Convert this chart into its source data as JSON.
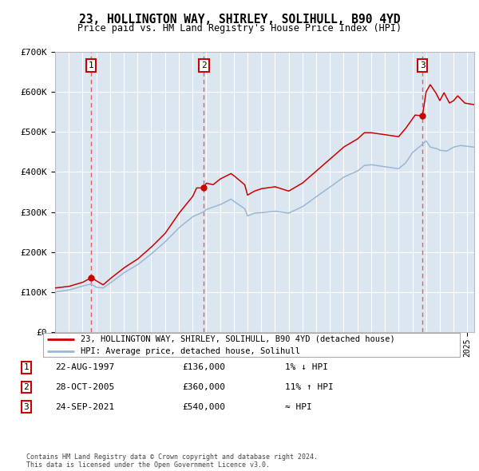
{
  "title": "23, HOLLINGTON WAY, SHIRLEY, SOLIHULL, B90 4YD",
  "subtitle": "Price paid vs. HM Land Registry's House Price Index (HPI)",
  "ylim": [
    0,
    700000
  ],
  "yticks": [
    0,
    100000,
    200000,
    300000,
    400000,
    500000,
    600000,
    700000
  ],
  "ytick_labels": [
    "£0",
    "£100K",
    "£200K",
    "£300K",
    "£400K",
    "£500K",
    "£600K",
    "£700K"
  ],
  "background_color": "#ffffff",
  "plot_bg_color": "#dce6f1",
  "grid_color": "#ffffff",
  "red_line_color": "#cc0000",
  "blue_line_color": "#9ab7d3",
  "vline_color": "#e06060",
  "sale_year_nums": [
    1997.63,
    2005.83,
    2021.73
  ],
  "sale_prices": [
    136000,
    360000,
    540000
  ],
  "sale_labels": [
    "1",
    "2",
    "3"
  ],
  "legend_red": "23, HOLLINGTON WAY, SHIRLEY, SOLIHULL, B90 4YD (detached house)",
  "legend_blue": "HPI: Average price, detached house, Solihull",
  "table_data": [
    [
      "1",
      "22-AUG-1997",
      "£136,000",
      "1% ↓ HPI"
    ],
    [
      "2",
      "28-OCT-2005",
      "£360,000",
      "11% ↑ HPI"
    ],
    [
      "3",
      "24-SEP-2021",
      "£540,000",
      "≈ HPI"
    ]
  ],
  "footnote": "Contains HM Land Registry data © Crown copyright and database right 2024.\nThis data is licensed under the Open Government Licence v3.0.",
  "xlim_start": 1995.0,
  "xlim_end": 2025.5,
  "hpi_key_x": [
    1995,
    1996,
    1997,
    1997.6,
    1998,
    1998.5,
    1999,
    2000,
    2001,
    2002,
    2003,
    2004,
    2005,
    2005.8,
    2006,
    2007,
    2007.8,
    2008,
    2008.8,
    2009,
    2009.5,
    2010,
    2011,
    2012,
    2013,
    2014,
    2015,
    2016,
    2017,
    2017.5,
    2018,
    2019,
    2020,
    2020.5,
    2021,
    2021.5,
    2021.7,
    2022.0,
    2022.3,
    2022.8,
    2023,
    2023.5,
    2024,
    2024.5,
    2025.5
  ],
  "hpi_key_y": [
    100000,
    105000,
    115000,
    120000,
    112000,
    110000,
    122000,
    148000,
    168000,
    195000,
    225000,
    260000,
    288000,
    300000,
    306000,
    318000,
    332000,
    327000,
    308000,
    290000,
    297000,
    298000,
    302000,
    297000,
    313000,
    338000,
    362000,
    387000,
    402000,
    416000,
    418000,
    413000,
    408000,
    422000,
    448000,
    462000,
    468000,
    478000,
    462000,
    458000,
    454000,
    452000,
    462000,
    466000,
    462000
  ],
  "red_key_x": [
    1995,
    1996,
    1997,
    1997.63,
    1998,
    1998.5,
    1999,
    2000,
    2001,
    2002,
    2003,
    2004,
    2005,
    2005.3,
    2005.83,
    2006.0,
    2006.5,
    2007,
    2007.8,
    2008,
    2008.8,
    2009,
    2009.5,
    2010,
    2011,
    2012,
    2013,
    2014,
    2015,
    2016,
    2017,
    2017.5,
    2018,
    2019,
    2020,
    2020.5,
    2021,
    2021.2,
    2021.73,
    2022.0,
    2022.3,
    2022.7,
    2023,
    2023.3,
    2023.7,
    2024,
    2024.3,
    2024.8,
    2025.5
  ],
  "red_key_y": [
    110000,
    114000,
    124000,
    136000,
    128000,
    118000,
    133000,
    160000,
    182000,
    212000,
    246000,
    296000,
    338000,
    360000,
    360000,
    372000,
    368000,
    382000,
    396000,
    391000,
    368000,
    342000,
    352000,
    358000,
    363000,
    352000,
    372000,
    402000,
    432000,
    462000,
    482000,
    498000,
    498000,
    493000,
    488000,
    508000,
    532000,
    542000,
    540000,
    600000,
    618000,
    598000,
    578000,
    598000,
    572000,
    578000,
    590000,
    572000,
    568000
  ]
}
